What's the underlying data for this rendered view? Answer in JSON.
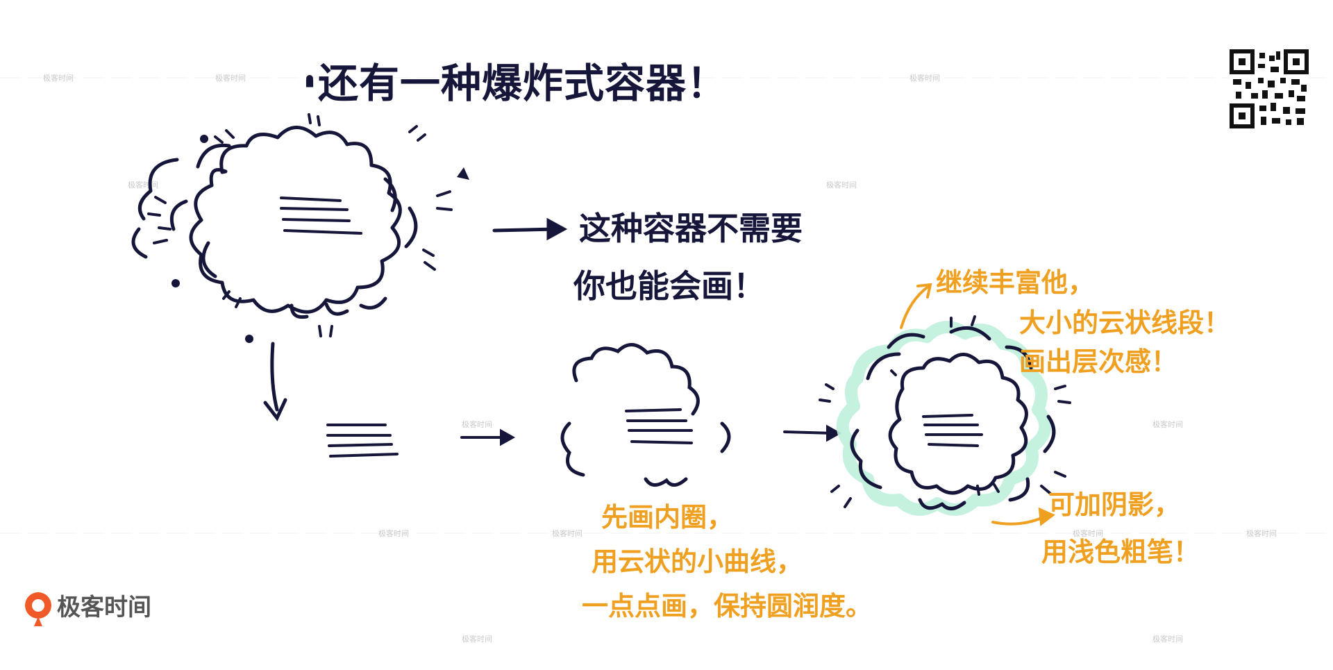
{
  "title": "·还有一种爆炸式容器！",
  "note_right": [
    "这种容器不需要",
    "你也能会画！"
  ],
  "note_bottom": [
    "先画内圈，",
    "用云状的小曲线，",
    "一点点画，保持圆润度。"
  ],
  "note_top_right": [
    "继续丰富他，",
    "大小的云状线段！",
    "画出层次感！"
  ],
  "note_shadow": [
    "可加阴影，",
    "用浅色粗笔！"
  ],
  "brand": {
    "name": "极客时间",
    "icon": "geektime-logo-icon"
  },
  "watermark": "极客时间",
  "colors": {
    "ink": "#15163a",
    "accent": "#f0a020",
    "shadow": "#bff0dc",
    "brand": "#f05a28"
  }
}
